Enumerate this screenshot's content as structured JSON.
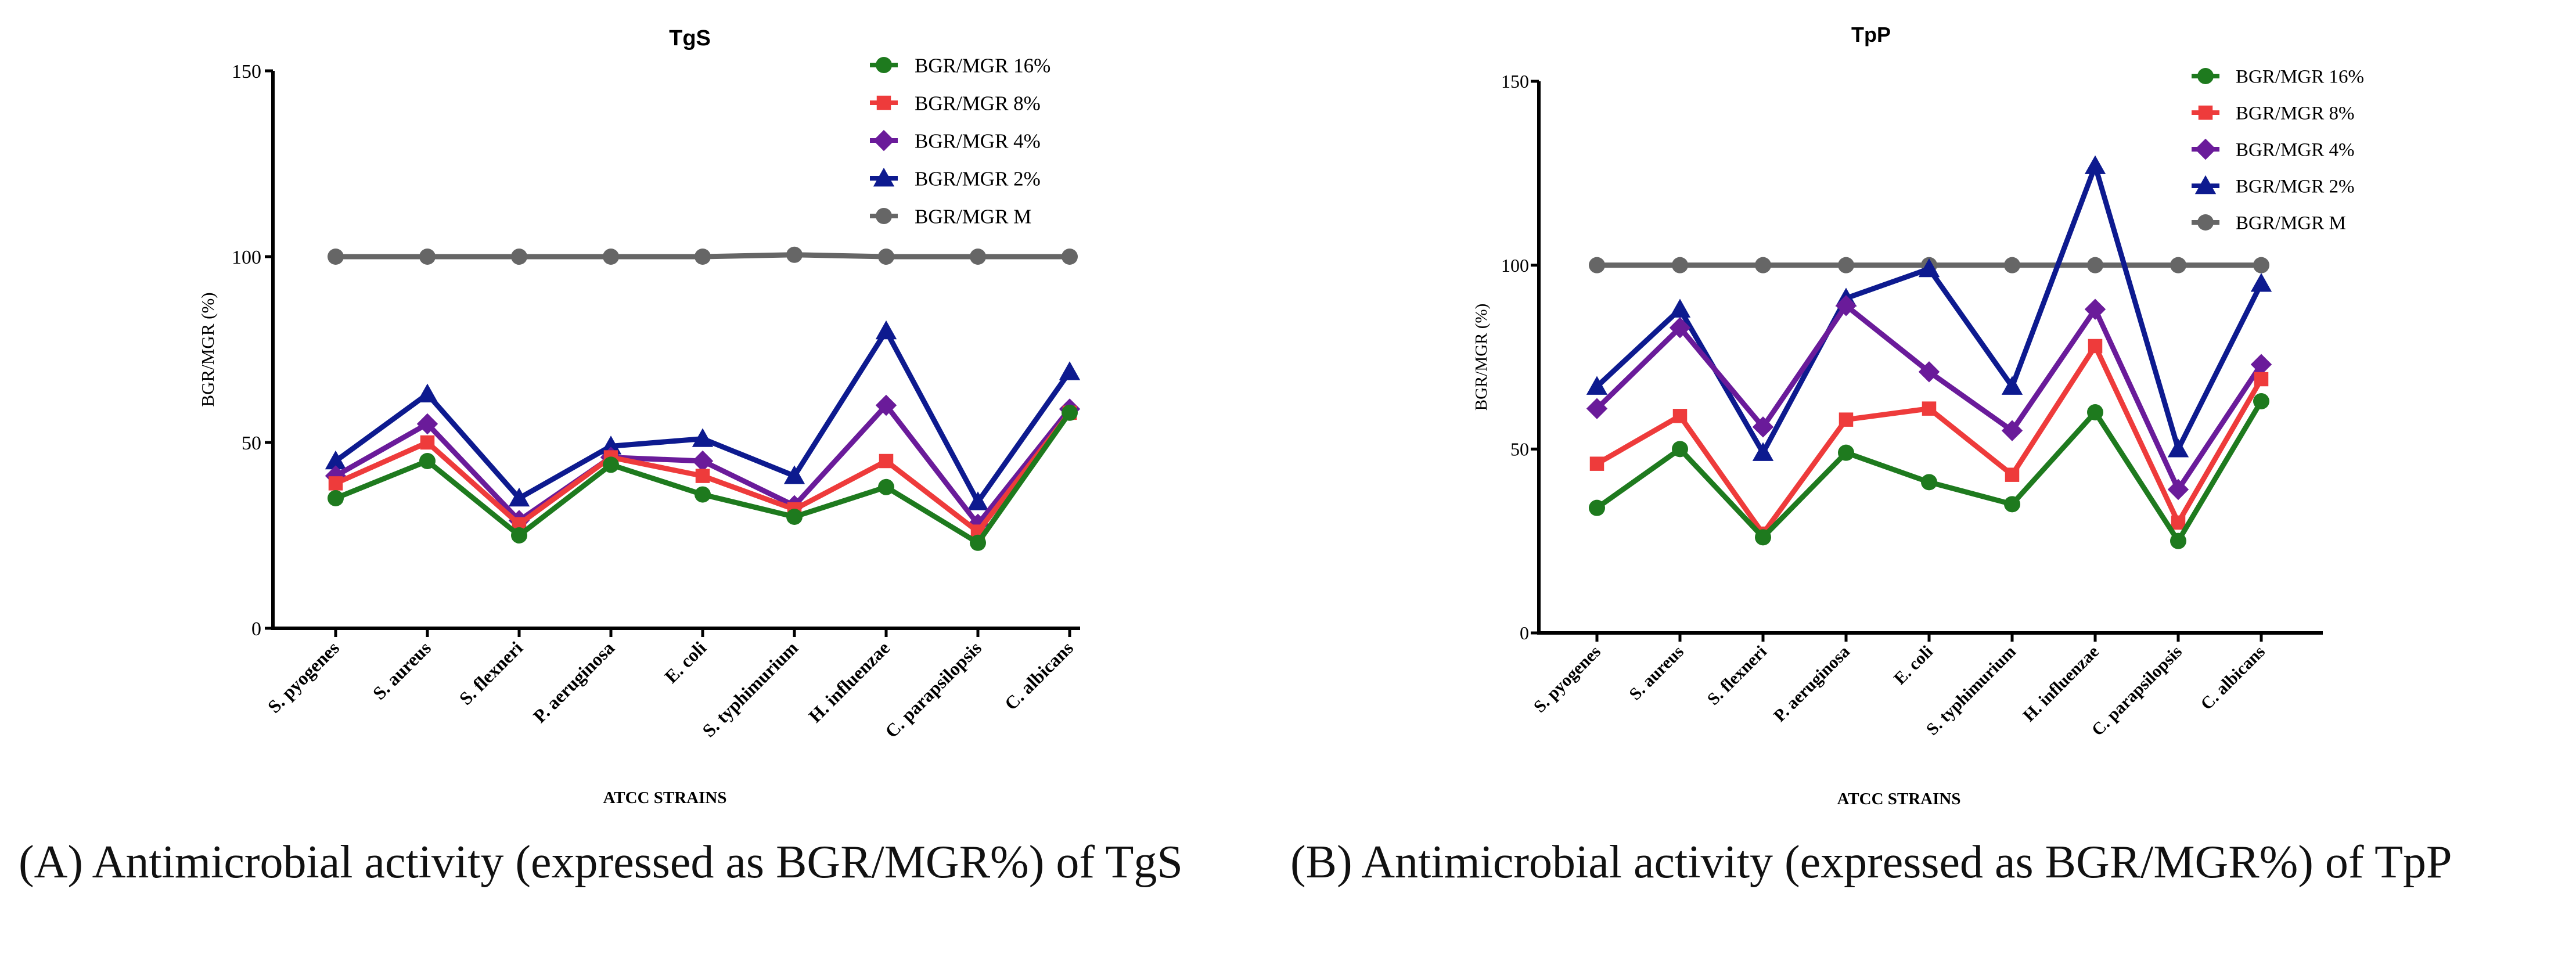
{
  "colors": {
    "BGR/MGR 16%": "#1e7a1e",
    "BGR/MGR 8%": "#ee3b3b",
    "BGR/MGR 4%": "#6a1b9a",
    "BGR/MGR 2%": "#0d1a8f",
    "BGR/MGR M": "#666666",
    "axis": "#000000"
  },
  "chart_data": [
    {
      "type": "line",
      "title": "TgS",
      "xlabel": "ATCC STRAINS",
      "ylabel": "BGR/MGR (%)",
      "ylim": [
        0,
        150
      ],
      "yticks": [
        0,
        50,
        100,
        150
      ],
      "legend_position": "top-right",
      "categories": [
        "S. pyogenes",
        "S. aureus",
        "S. flexneri",
        "P. aeruginosa",
        "E. coli",
        "S. typhimurium",
        "H. influenzae",
        "C. parapsilopsis",
        "C. albicans"
      ],
      "series": [
        {
          "name": "BGR/MGR 16%",
          "marker": "circle",
          "values": [
            35,
            45,
            25,
            44,
            36,
            30,
            38,
            23,
            58
          ]
        },
        {
          "name": "BGR/MGR 8%",
          "marker": "square",
          "values": [
            39,
            50,
            28,
            46,
            41,
            32,
            45,
            26,
            58
          ]
        },
        {
          "name": "BGR/MGR 4%",
          "marker": "diamond",
          "values": [
            41,
            55,
            29,
            46,
            45,
            33,
            60,
            28,
            59
          ]
        },
        {
          "name": "BGR/MGR 2%",
          "marker": "triangle",
          "values": [
            45,
            63,
            35,
            49,
            51,
            41,
            80,
            34,
            69
          ]
        },
        {
          "name": "BGR/MGR M",
          "marker": "circle",
          "values": [
            100,
            100,
            100,
            100,
            100,
            100.5,
            100,
            100,
            100
          ]
        }
      ]
    },
    {
      "type": "line",
      "title": "TpP",
      "xlabel": "ATCC STRAINS",
      "ylabel": "BGR/MGR (%)",
      "ylim": [
        0,
        150
      ],
      "yticks": [
        0,
        50,
        100,
        150
      ],
      "legend_position": "top-right",
      "categories": [
        "S. pyogenes",
        "S. aureus",
        "S. flexneri",
        "P. aeruginosa",
        "E. coli",
        "S. typhimurium",
        "H. influenzae",
        "C. parapsilopsis",
        "C. albicans"
      ],
      "series": [
        {
          "name": "BGR/MGR 16%",
          "marker": "circle",
          "values": [
            34,
            50,
            26,
            49,
            41,
            35,
            60,
            25,
            63
          ]
        },
        {
          "name": "BGR/MGR 8%",
          "marker": "square",
          "values": [
            46,
            59,
            27,
            58,
            61,
            43,
            78,
            30,
            69
          ]
        },
        {
          "name": "BGR/MGR 4%",
          "marker": "diamond",
          "values": [
            61,
            83,
            56,
            89,
            71,
            55,
            88,
            39,
            73
          ]
        },
        {
          "name": "BGR/MGR 2%",
          "marker": "triangle",
          "values": [
            67,
            88,
            49,
            91,
            99,
            67,
            127,
            50,
            95
          ]
        },
        {
          "name": "BGR/MGR M",
          "marker": "circle",
          "values": [
            100,
            100,
            100,
            100,
            100,
            100,
            100,
            100,
            100
          ]
        }
      ]
    }
  ],
  "captions": [
    "(A) Antimicrobial activity (expressed as BGR/MGR%) of TgS",
    "(B) Antimicrobial activity (expressed as BGR/MGR%) of TpP"
  ]
}
